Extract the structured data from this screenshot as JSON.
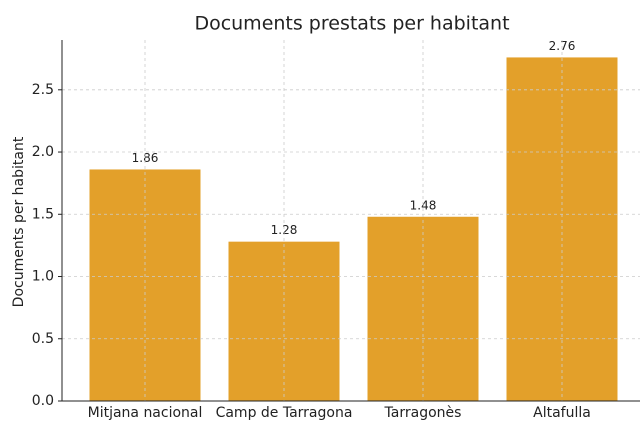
{
  "chart_data": {
    "type": "bar",
    "title": "Documents prestats per habitant",
    "ylabel": "Documents per habitant",
    "categories": [
      "Mitjana nacional",
      "Camp de Tarragona",
      "Tarragonès",
      "Altafulla"
    ],
    "values": [
      1.86,
      1.28,
      1.48,
      2.76
    ],
    "color": "#e3a02a",
    "ylim": [
      0,
      2.9
    ],
    "yticks": [
      {
        "value": 0,
        "label": "0.0"
      },
      0.5,
      {
        "value": 1,
        "label": "1.0"
      },
      1.5,
      {
        "value": 2,
        "label": "2.0"
      },
      2.5
    ],
    "grid": true
  }
}
